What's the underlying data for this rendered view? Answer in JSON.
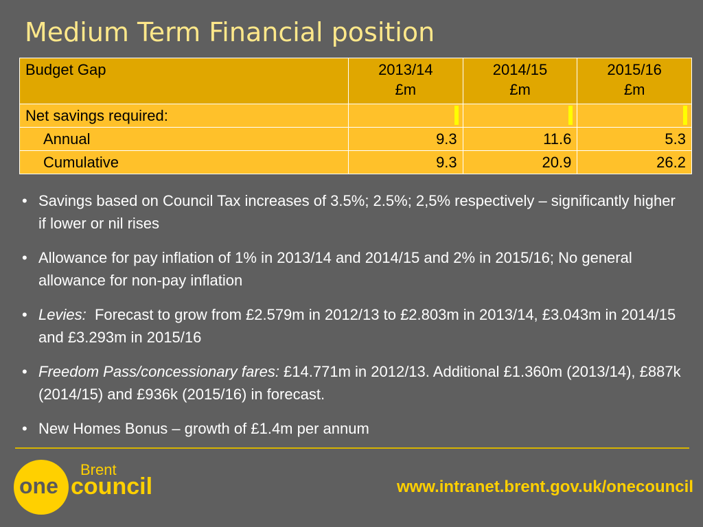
{
  "title": "Medium Term Financial position",
  "table": {
    "header": [
      "Budget Gap",
      "2013/14",
      "2014/15",
      "2015/16"
    ],
    "units": [
      "",
      "£m",
      "£m",
      "£m"
    ],
    "section_label": "Net savings required:",
    "rows": [
      {
        "label": "Annual",
        "values": [
          "9.3",
          "11.6",
          "5.3"
        ]
      },
      {
        "label": "Cumulative",
        "values": [
          "9.3",
          "20.9",
          "26.2"
        ]
      }
    ]
  },
  "bullets": [
    {
      "lead": "",
      "text": "Savings based on Council Tax increases of 3.5%; 2.5%; 2,5% respectively – significantly higher if lower or nil rises"
    },
    {
      "lead": "",
      "text": "Allowance for pay inflation of 1% in 2013/14 and 2014/15 and 2% in 2015/16; No general allowance for non-pay inflation"
    },
    {
      "lead": "Levies:",
      "text": "  Forecast to grow from £2.579m in 2012/13 to £2.803m in 2013/14, £3.043m in 2014/15 and £3.293m in 2015/16"
    },
    {
      "lead": "Freedom Pass/concessionary fares:",
      "text": " £14.771m in 2012/13. Additional £1.360m (2013/14), £887k (2014/15) and £936k (2015/16) in forecast."
    },
    {
      "lead": "",
      "text": "New Homes Bonus – growth of £1.4m per annum"
    }
  ],
  "footer": {
    "logo_top": "Brent",
    "logo_one": "one",
    "logo_council": "council",
    "url": "www.intranet.brent.gov.uk/onecouncil"
  }
}
